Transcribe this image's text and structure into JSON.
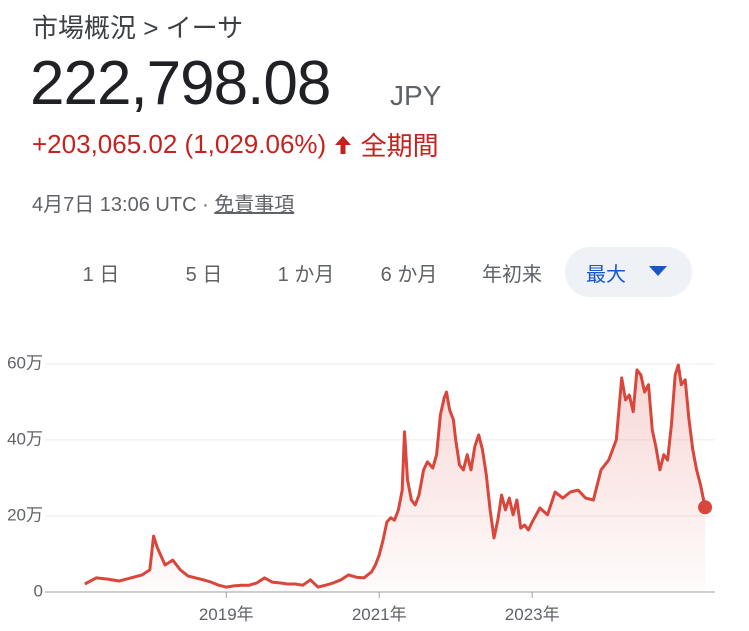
{
  "header": {
    "breadcrumb": "市場概況 > イーサ",
    "price": "222,798.08",
    "currency": "JPY",
    "change": "+203,065.02 (1,029.06%)",
    "period": "全期間",
    "timestamp": "4月7日 13:06 UTC ·",
    "disclaimer": "免責事項"
  },
  "tabs": [
    "1 日",
    "5 日",
    "1 か月",
    "6 か月",
    "年初来",
    "最大"
  ],
  "chart_data": {
    "type": "area",
    "color": "#d9463b",
    "grid": true,
    "xlim": [
      2016.63,
      2025.39
    ],
    "xticks": [
      {
        "value": 2019,
        "label": "2019年"
      },
      {
        "value": 2021,
        "label": "2021年"
      },
      {
        "value": 2023,
        "label": "2023年"
      }
    ],
    "ylim": [
      0,
      660000
    ],
    "yticks": [
      0,
      {
        "value": 200000,
        "label": "20万"
      },
      {
        "value": 400000,
        "label": "40万"
      },
      {
        "value": 600000,
        "label": "60万"
      }
    ],
    "x": [
      2017.15,
      2017.3,
      2017.45,
      2017.6,
      2017.75,
      2017.9,
      2018.0,
      2018.05,
      2018.1,
      2018.2,
      2018.3,
      2018.4,
      2018.5,
      2018.6,
      2018.7,
      2018.8,
      2018.9,
      2019.0,
      2019.1,
      2019.2,
      2019.3,
      2019.4,
      2019.5,
      2019.6,
      2019.7,
      2019.8,
      2019.9,
      2020.0,
      2020.1,
      2020.2,
      2020.3,
      2020.4,
      2020.5,
      2020.6,
      2020.7,
      2020.8,
      2020.9,
      2020.95,
      2021.0,
      2021.05,
      2021.1,
      2021.15,
      2021.2,
      2021.25,
      2021.3,
      2021.33,
      2021.37,
      2021.42,
      2021.47,
      2021.52,
      2021.58,
      2021.63,
      2021.7,
      2021.75,
      2021.8,
      2021.85,
      2021.88,
      2021.92,
      2021.97,
      2022.0,
      2022.05,
      2022.1,
      2022.15,
      2022.2,
      2022.25,
      2022.3,
      2022.35,
      2022.4,
      2022.45,
      2022.5,
      2022.55,
      2022.6,
      2022.65,
      2022.7,
      2022.75,
      2022.8,
      2022.85,
      2022.9,
      2022.95,
      2023.0,
      2023.1,
      2023.2,
      2023.3,
      2023.4,
      2023.5,
      2023.6,
      2023.7,
      2023.8,
      2023.9,
      2024.0,
      2024.1,
      2024.17,
      2024.22,
      2024.27,
      2024.32,
      2024.37,
      2024.42,
      2024.47,
      2024.52,
      2024.57,
      2024.62,
      2024.67,
      2024.72,
      2024.77,
      2024.82,
      2024.87,
      2024.91,
      2024.95,
      2025.0,
      2025.05,
      2025.1,
      2025.15,
      2025.2,
      2025.26
    ],
    "series": [
      {
        "values": [
          21000,
          37000,
          34000,
          29000,
          37000,
          45000,
          58000,
          147000,
          116000,
          71000,
          84000,
          58000,
          42000,
          37000,
          32000,
          26000,
          18000,
          13000,
          16000,
          18000,
          18000,
          24000,
          37000,
          26000,
          24000,
          21000,
          21000,
          18000,
          32000,
          13000,
          18000,
          24000,
          32000,
          45000,
          39000,
          37000,
          53000,
          71000,
          97000,
          137000,
          184000,
          195000,
          189000,
          216000,
          268000,
          421000,
          295000,
          242000,
          229000,
          255000,
          321000,
          342000,
          326000,
          361000,
          466000,
          511000,
          526000,
          479000,
          453000,
          400000,
          334000,
          321000,
          361000,
          321000,
          382000,
          413000,
          374000,
          308000,
          216000,
          142000,
          189000,
          255000,
          216000,
          247000,
          203000,
          242000,
          168000,
          176000,
          163000,
          184000,
          221000,
          203000,
          263000,
          247000,
          263000,
          268000,
          247000,
          242000,
          321000,
          347000,
          400000,
          563000,
          505000,
          518000,
          474000,
          584000,
          571000,
          526000,
          545000,
          426000,
          379000,
          321000,
          361000,
          347000,
          439000,
          571000,
          597000,
          545000,
          558000,
          453000,
          374000,
          321000,
          282000,
          222798.08
        ]
      }
    ]
  }
}
